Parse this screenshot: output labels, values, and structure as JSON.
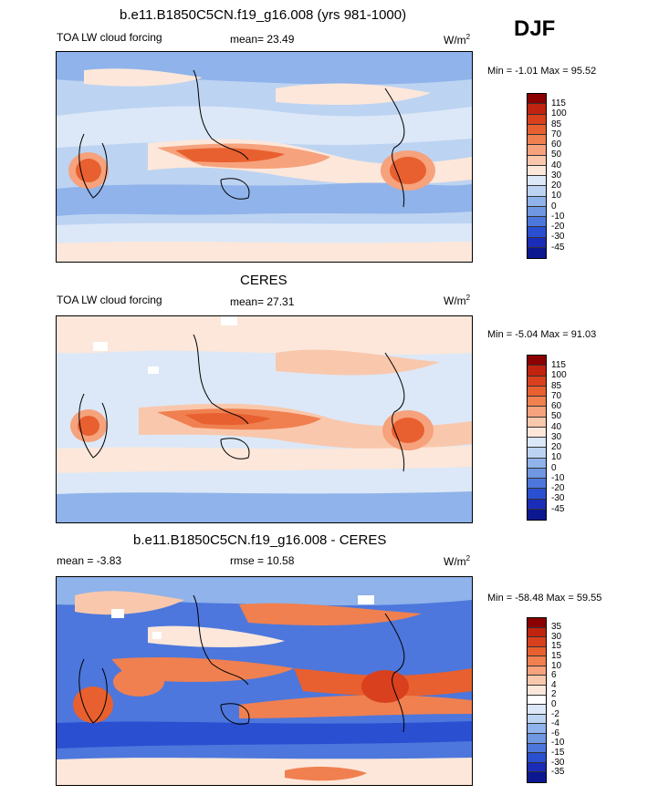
{
  "header": {
    "season": "DJF"
  },
  "panels": [
    {
      "title": "b.e11.B1850C5CN.f19_g16.008 (yrs 981-1000)",
      "left_label": "TOA LW cloud forcing",
      "center_label": "mean=  23.49",
      "units_base": "W/m",
      "units_exp": "2",
      "minmax": "Min =  -1.01 Max =  95.52",
      "colorbar": {
        "levels": [
          "115",
          "100",
          "85",
          "70",
          "60",
          "50",
          "40",
          "30",
          "20",
          "10",
          "0",
          "-10",
          "-20",
          "-30",
          "-45"
        ],
        "colors": [
          "#8b0000",
          "#c0230f",
          "#d9401d",
          "#e8602f",
          "#f08050",
          "#f6a27c",
          "#f9c8ac",
          "#fce7da",
          "#dce8f7",
          "#bdd3f2",
          "#8fb3ea",
          "#6f97e2",
          "#4d77dc",
          "#2a4fd0",
          "#1a2cb8",
          "#0c1890"
        ]
      },
      "map_fill": {
        "base": "#bdd3f2",
        "land_mask": "none"
      }
    },
    {
      "title": "CERES",
      "left_label": "TOA LW cloud forcing",
      "center_label": "mean=  27.31",
      "units_base": "W/m",
      "units_exp": "2",
      "minmax": "Min =  -5.04 Max =  91.03",
      "colorbar": {
        "levels": [
          "115",
          "100",
          "85",
          "70",
          "60",
          "50",
          "40",
          "30",
          "20",
          "10",
          "0",
          "-10",
          "-20",
          "-30",
          "-45"
        ],
        "colors": [
          "#8b0000",
          "#c0230f",
          "#d9401d",
          "#e8602f",
          "#f08050",
          "#f6a27c",
          "#f9c8ac",
          "#fce7da",
          "#dce8f7",
          "#bdd3f2",
          "#8fb3ea",
          "#6f97e2",
          "#4d77dc",
          "#2a4fd0",
          "#1a2cb8",
          "#0c1890"
        ]
      },
      "map_fill": {
        "base": "#dce8f7",
        "land_mask": "none"
      }
    },
    {
      "title": "b.e11.B1850C5CN.f19_g16.008 - CERES",
      "left_label": "mean =  -3.83",
      "center_label": "rmse =  10.58",
      "units_base": "W/m",
      "units_exp": "2",
      "minmax": "Min = -58.48 Max =  59.55",
      "colorbar": {
        "levels": [
          "35",
          "30",
          "15",
          "15",
          "10",
          "6",
          "4",
          "2",
          "0",
          "-2",
          "-4",
          "-6",
          "-10",
          "-15",
          "-30",
          "-35"
        ],
        "colors": [
          "#8b0000",
          "#c0230f",
          "#d9401d",
          "#e8602f",
          "#f08050",
          "#f6a27c",
          "#f9c8ac",
          "#fce7da",
          "#ffffff",
          "#dce8f7",
          "#bdd3f2",
          "#8fb3ea",
          "#6f97e2",
          "#4d77dc",
          "#2a4fd0",
          "#1a2cb8",
          "#0c1890"
        ]
      },
      "map_fill": {
        "base": "#6f97e2",
        "land_mask": "none"
      }
    }
  ]
}
